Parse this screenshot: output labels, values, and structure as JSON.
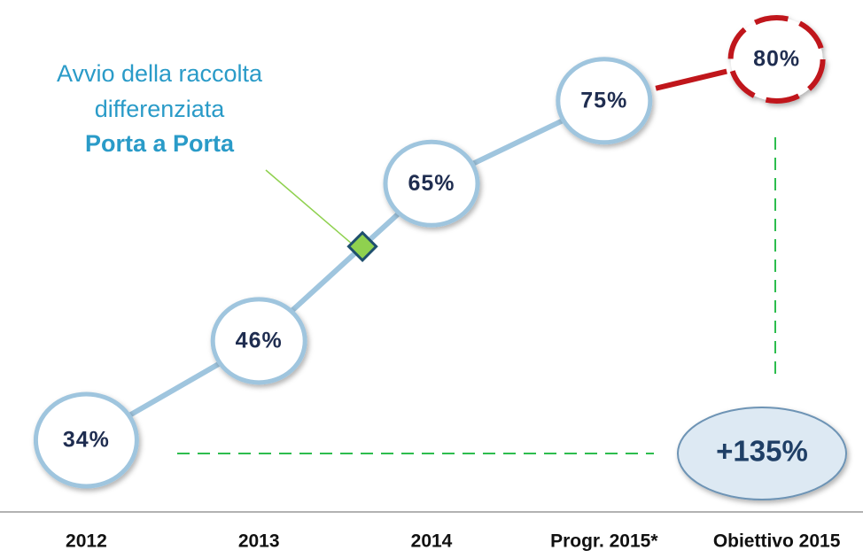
{
  "chart_data": {
    "type": "line",
    "categories": [
      "2012",
      "2013",
      "2014",
      "Progr. 2015*",
      "Obiettivo 2015"
    ],
    "values": [
      34,
      46,
      65,
      75,
      80
    ],
    "value_labels": [
      "34%",
      "46%",
      "65%",
      "75%",
      "80%"
    ],
    "color": "#9fc5de",
    "target_color": "#c0161b",
    "annotation": {
      "lines": [
        "Avvio della raccolta",
        "differenziata"
      ],
      "emphasis": "Porta a Porta"
    },
    "growth_label": "+135%"
  }
}
